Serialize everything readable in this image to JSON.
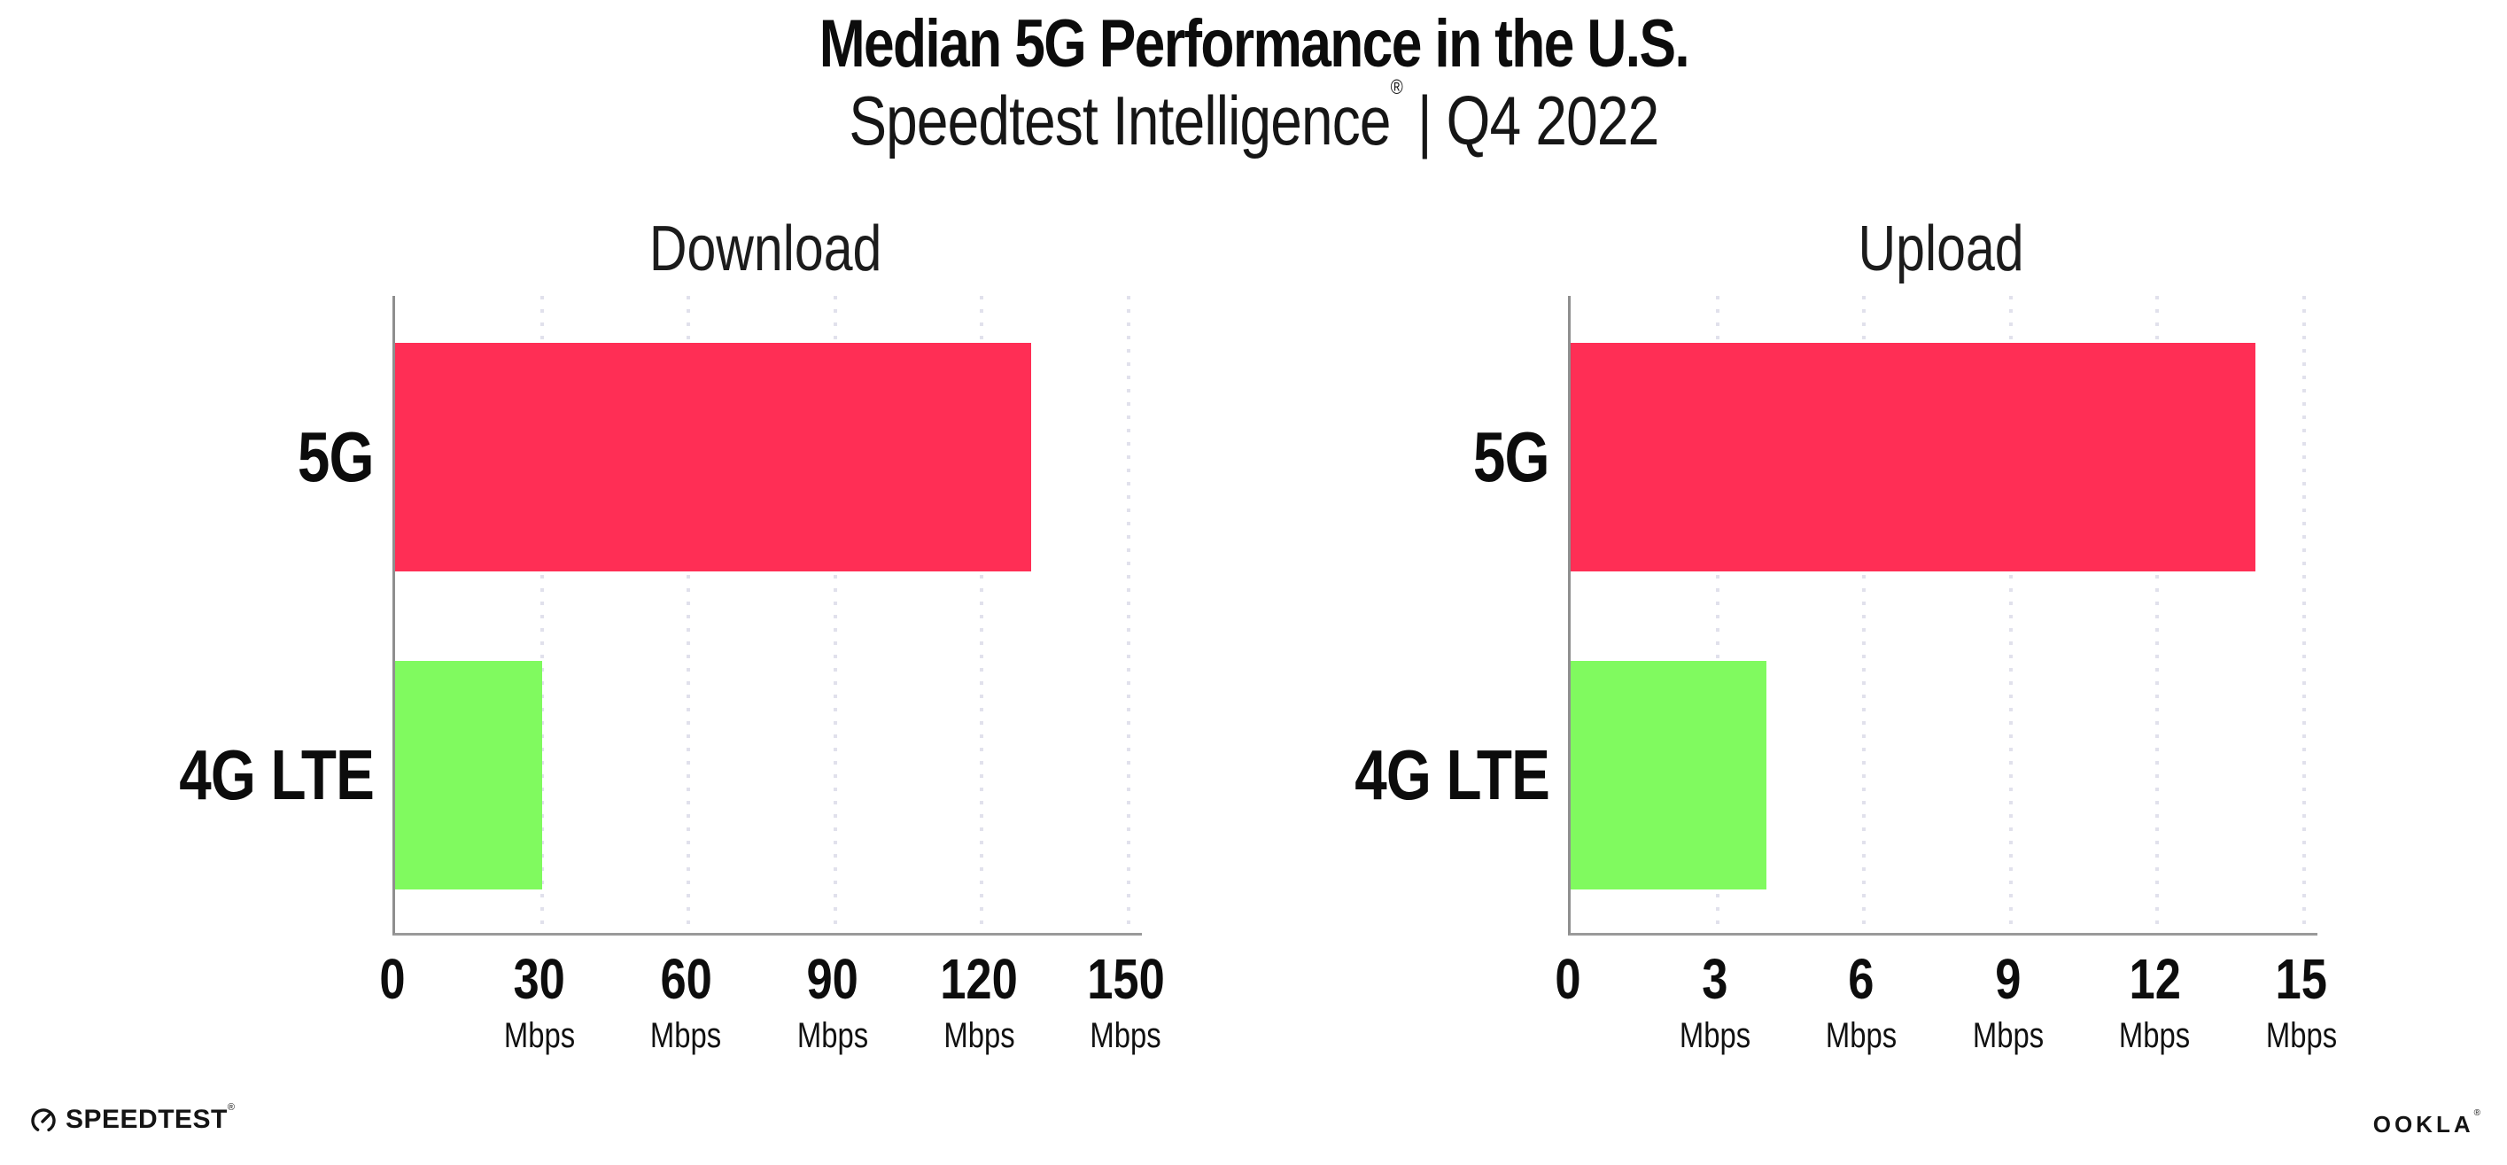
{
  "header": {
    "title": "Median 5G Performance in the U.S.",
    "subtitle_brand": "Speedtest Intelligence",
    "subtitle_reg": "®",
    "subtitle_rest": " | Q4 2022"
  },
  "colors": {
    "bar_5g": "#ff2e55",
    "bar_4g_lte": "#80fa5f",
    "gridline": "#e1e1ec",
    "axis": "#9a9a9a",
    "text": "#111111"
  },
  "chart_data": [
    {
      "type": "bar",
      "orientation": "horizontal",
      "title": "Download",
      "categories": [
        "5G",
        "4G LTE"
      ],
      "values": [
        130,
        30
      ],
      "unit": "Mbps",
      "xlim": [
        0,
        150
      ],
      "xticks": [
        0,
        30,
        60,
        90,
        120,
        150
      ],
      "grid": "vertical-dotted",
      "legend": "none",
      "bar_colors": [
        "#ff2e55",
        "#80fa5f"
      ]
    },
    {
      "type": "bar",
      "orientation": "horizontal",
      "title": "Upload",
      "categories": [
        "5G",
        "4G LTE"
      ],
      "values": [
        14,
        4
      ],
      "unit": "Mbps",
      "xlim": [
        0,
        15
      ],
      "xticks": [
        0,
        3,
        6,
        9,
        12,
        15
      ],
      "grid": "vertical-dotted",
      "legend": "none",
      "bar_colors": [
        "#ff2e55",
        "#80fa5f"
      ]
    }
  ],
  "footer": {
    "speedtest_label": "SPEEDTEST",
    "speedtest_reg": "®",
    "ookla_label": "OOKLA",
    "ookla_reg": "®"
  }
}
